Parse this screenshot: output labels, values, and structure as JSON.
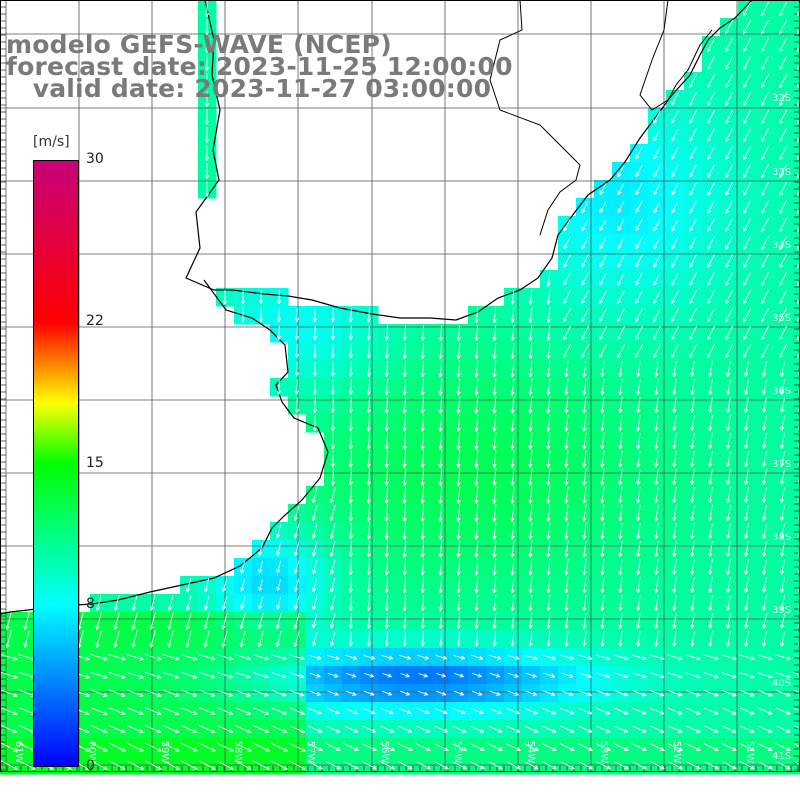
{
  "title": {
    "line1": "modelo GEFS-WAVE (NCEP)",
    "line2": "forecast date: 2023-11-25 12:00:00",
    "line3": "   valid date: 2023-11-27 03:00:00"
  },
  "colorbar": {
    "unit": "[m/s]",
    "ticks": [
      "30",
      "22",
      "15",
      "8",
      "0"
    ],
    "tick_values": [
      30,
      22,
      15,
      8,
      0
    ],
    "stops": [
      {
        "value": 0,
        "color": "#0000ff"
      },
      {
        "value": 8,
        "color": "#00ffff"
      },
      {
        "value": 15,
        "color": "#00ff00"
      },
      {
        "value": 18,
        "color": "#ffff00"
      },
      {
        "value": 22,
        "color": "#ff0000"
      },
      {
        "value": 30,
        "color": "#c8007a"
      }
    ]
  },
  "lat_labels": [
    "32S",
    "33S",
    "34S",
    "35S",
    "36S",
    "37S",
    "38S",
    "39S",
    "40S",
    "41S"
  ],
  "lon_labels": [
    "61W",
    "60W",
    "59W",
    "58W",
    "57W",
    "56W",
    "55W",
    "54W",
    "53W",
    "52W",
    "51W"
  ],
  "wind_field": {
    "unit": "m/s",
    "lon_range": [
      -61,
      -50
    ],
    "lat_range": [
      -41.5,
      -30.7
    ],
    "note_source": "speed and direction per model cell"
  }
}
